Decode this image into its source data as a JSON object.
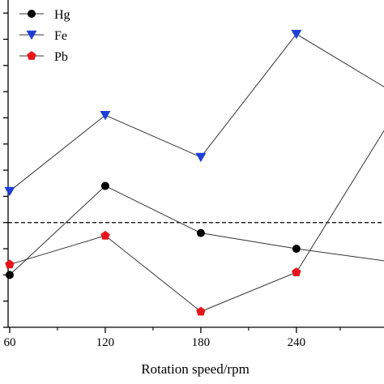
{
  "chart_data": {
    "type": "line",
    "xlabel": "Rotation speed/rpm",
    "ylabel": "",
    "x": [
      60,
      120,
      180,
      240,
      300
    ],
    "x_ticks": [
      "60",
      "120",
      "180",
      "240"
    ],
    "xlim": [
      59,
      295
    ],
    "ylim": [
      0,
      12.5
    ],
    "reference_line": {
      "y": 4,
      "style": "dashed"
    },
    "legend_position": "top-left",
    "series": [
      {
        "name": "Hg",
        "marker": "circle",
        "color": "#000000",
        "values": [
          2.0,
          5.4,
          3.6,
          3.0,
          2.5
        ]
      },
      {
        "name": "Fe",
        "marker": "triangle-down",
        "color": "#1f3fd6",
        "values": [
          5.2,
          8.1,
          6.5,
          11.2,
          9.0
        ]
      },
      {
        "name": "Pb",
        "marker": "pentagon",
        "color": "#e8141c",
        "values": [
          2.4,
          3.5,
          0.6,
          2.1,
          8.0
        ]
      }
    ]
  }
}
